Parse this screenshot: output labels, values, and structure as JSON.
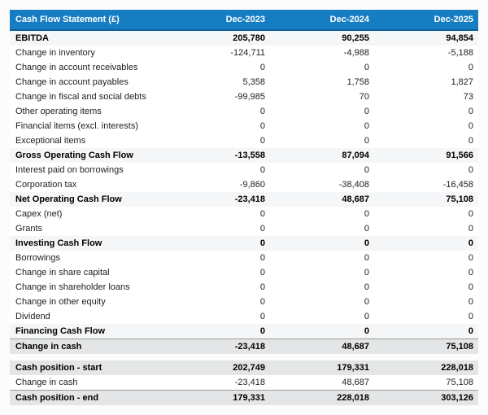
{
  "table": {
    "colors": {
      "header_bg": "#177dc2",
      "header_text": "#ffffff",
      "header_border": "#0f5f9a",
      "subtotal_bg": "#f5f6f7",
      "total_bg": "#e4e5e6",
      "total_border": "#9b9b9b"
    },
    "header": {
      "title": "Cash Flow Statement (£)",
      "columns": [
        "Dec-2023",
        "Dec-2024",
        "Dec-2025"
      ]
    },
    "sections": [
      {
        "rows": [
          {
            "label": "EBITDA",
            "values": [
              "205,780",
              "90,255",
              "94,854"
            ],
            "style": "subtotal"
          },
          {
            "label": "Change in inventory",
            "values": [
              "-124,711",
              "-4,988",
              "-5,188"
            ],
            "style": "plain"
          },
          {
            "label": "Change in account receivables",
            "values": [
              "0",
              "0",
              "0"
            ],
            "style": "plain"
          },
          {
            "label": "Change in account payables",
            "values": [
              "5,358",
              "1,758",
              "1,827"
            ],
            "style": "plain"
          },
          {
            "label": "Change in fiscal and social debts",
            "values": [
              "-99,985",
              "70",
              "73"
            ],
            "style": "plain"
          },
          {
            "label": "Other operating items",
            "values": [
              "0",
              "0",
              "0"
            ],
            "style": "plain"
          },
          {
            "label": "Financial items (excl. interests)",
            "values": [
              "0",
              "0",
              "0"
            ],
            "style": "plain"
          },
          {
            "label": "Exceptional items",
            "values": [
              "0",
              "0",
              "0"
            ],
            "style": "plain"
          },
          {
            "label": "Gross Operating Cash Flow",
            "values": [
              "-13,558",
              "87,094",
              "91,566"
            ],
            "style": "subtotal"
          },
          {
            "label": "Interest paid on borrowings",
            "values": [
              "0",
              "0",
              "0"
            ],
            "style": "plain"
          },
          {
            "label": "Corporation tax",
            "values": [
              "-9,860",
              "-38,408",
              "-16,458"
            ],
            "style": "plain"
          },
          {
            "label": "Net Operating Cash Flow",
            "values": [
              "-23,418",
              "48,687",
              "75,108"
            ],
            "style": "subtotal"
          },
          {
            "label": "Capex (net)",
            "values": [
              "0",
              "0",
              "0"
            ],
            "style": "plain"
          },
          {
            "label": "Grants",
            "values": [
              "0",
              "0",
              "0"
            ],
            "style": "plain"
          },
          {
            "label": "Investing Cash Flow",
            "values": [
              "0",
              "0",
              "0"
            ],
            "style": "subtotal"
          },
          {
            "label": "Borrowings",
            "values": [
              "0",
              "0",
              "0"
            ],
            "style": "plain"
          },
          {
            "label": "Change in share capital",
            "values": [
              "0",
              "0",
              "0"
            ],
            "style": "plain"
          },
          {
            "label": "Change in shareholder loans",
            "values": [
              "0",
              "0",
              "0"
            ],
            "style": "plain"
          },
          {
            "label": "Change in other equity",
            "values": [
              "0",
              "0",
              "0"
            ],
            "style": "plain"
          },
          {
            "label": "Dividend",
            "values": [
              "0",
              "0",
              "0"
            ],
            "style": "plain"
          },
          {
            "label": "Financing Cash Flow",
            "values": [
              "0",
              "0",
              "0"
            ],
            "style": "subtotal"
          },
          {
            "label": "Change in cash",
            "values": [
              "-23,418",
              "48,687",
              "75,108"
            ],
            "style": "total"
          }
        ]
      },
      {
        "rows": [
          {
            "label": "Cash position - start",
            "values": [
              "202,749",
              "179,331",
              "228,018"
            ],
            "style": "band"
          },
          {
            "label": "Change in cash",
            "values": [
              "-23,418",
              "48,687",
              "75,108"
            ],
            "style": "plain"
          },
          {
            "label": "Cash position - end",
            "values": [
              "179,331",
              "228,018",
              "303,126"
            ],
            "style": "total"
          }
        ]
      }
    ]
  }
}
